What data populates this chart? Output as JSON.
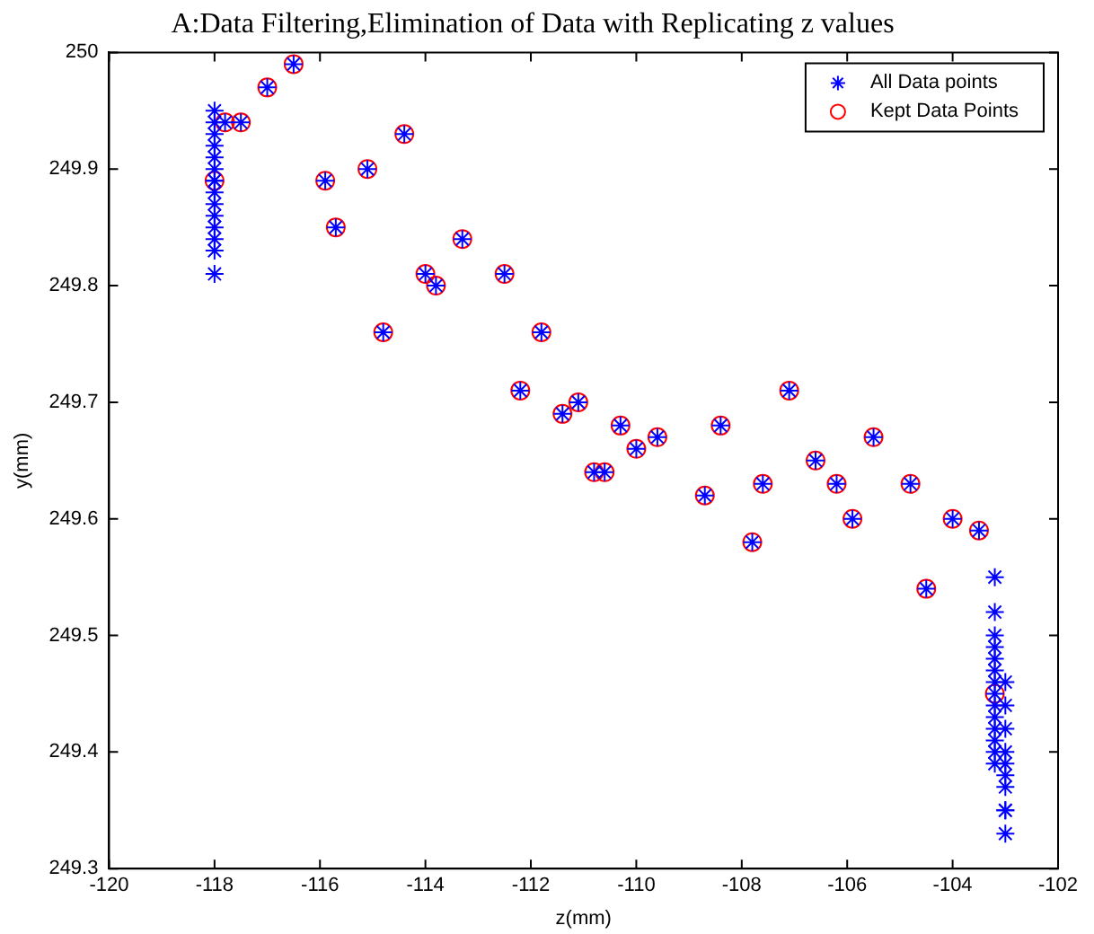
{
  "chart_data": {
    "type": "scatter",
    "title": "A:Data Filtering,Elimination of Data with Replicating z values",
    "xlabel": "z(mm)",
    "ylabel": "y(mm)",
    "xlim": [
      -120,
      -102
    ],
    "xticks": [
      -120,
      -118,
      -116,
      -114,
      -112,
      -110,
      -108,
      -106,
      -104,
      -102
    ],
    "ylim": [
      249.3,
      250
    ],
    "yticks": [
      249.3,
      249.4,
      249.5,
      249.6,
      249.7,
      249.8,
      249.9,
      250
    ],
    "grid": false,
    "legend": "top right",
    "series": [
      {
        "name": "All Data points",
        "color": "#0000ff",
        "marker": "cross",
        "x": [
          -118,
          -118,
          -118,
          -118,
          -118,
          -118,
          -118,
          -118,
          -118,
          -118,
          -118,
          -118,
          -118,
          -118,
          -118,
          -117.8,
          -117.5,
          -117,
          -116.5,
          -115.9,
          -115.7,
          -115.1,
          -114.8,
          -114.4,
          -114,
          -113.8,
          -113.3,
          -112.5,
          -112.2,
          -111.8,
          -111.4,
          -111.1,
          -110.8,
          -110.6,
          -110.3,
          -110,
          -109.6,
          -108.7,
          -108.4,
          -107.8,
          -107.6,
          -107.1,
          -106.6,
          -106.2,
          -105.9,
          -105.5,
          -104.8,
          -104.5,
          -104,
          -103.5,
          -103.2,
          -103.2,
          -103.2,
          -103.2,
          -103.2,
          -103.2,
          -103.2,
          -103.2,
          -103.2,
          -103.2,
          -103.2,
          -103.2,
          -103.2,
          -103.2,
          -103,
          -103,
          -103,
          -103,
          -103,
          -103,
          -103,
          -103,
          -103,
          -103
        ],
        "values": [
          249.81,
          249.83,
          249.84,
          249.85,
          249.86,
          249.87,
          249.88,
          249.89,
          249.9,
          249.91,
          249.92,
          249.93,
          249.94,
          249.95,
          249.89,
          249.94,
          249.94,
          249.97,
          249.99,
          249.89,
          249.85,
          249.9,
          249.76,
          249.93,
          249.81,
          249.8,
          249.84,
          249.81,
          249.71,
          249.76,
          249.69,
          249.7,
          249.64,
          249.64,
          249.68,
          249.66,
          249.67,
          249.62,
          249.68,
          249.58,
          249.63,
          249.71,
          249.65,
          249.63,
          249.6,
          249.67,
          249.63,
          249.54,
          249.6,
          249.59,
          249.55,
          249.52,
          249.5,
          249.49,
          249.48,
          249.47,
          249.46,
          249.45,
          249.44,
          249.43,
          249.42,
          249.41,
          249.4,
          249.39,
          249.46,
          249.44,
          249.42,
          249.4,
          249.39,
          249.38,
          249.37,
          249.35,
          249.35,
          249.33
        ]
      },
      {
        "name": "Kept Data Points",
        "color": "#ff0000",
        "marker": "circle",
        "x": [
          -118,
          -117.8,
          -117.5,
          -117,
          -116.5,
          -115.9,
          -115.7,
          -115.1,
          -114.8,
          -114.4,
          -114,
          -113.8,
          -113.3,
          -112.5,
          -112.2,
          -111.8,
          -111.4,
          -111.1,
          -110.8,
          -110.6,
          -110.3,
          -110,
          -109.6,
          -108.7,
          -108.4,
          -107.8,
          -107.6,
          -107.1,
          -106.6,
          -106.2,
          -105.9,
          -105.5,
          -104.8,
          -104.5,
          -104,
          -103.5,
          -103.2
        ],
        "values": [
          249.89,
          249.94,
          249.94,
          249.97,
          249.99,
          249.89,
          249.85,
          249.9,
          249.76,
          249.93,
          249.81,
          249.8,
          249.84,
          249.81,
          249.71,
          249.76,
          249.69,
          249.7,
          249.64,
          249.64,
          249.68,
          249.66,
          249.67,
          249.62,
          249.68,
          249.58,
          249.63,
          249.71,
          249.65,
          249.63,
          249.6,
          249.67,
          249.63,
          249.54,
          249.6,
          249.59,
          249.45
        ]
      }
    ]
  }
}
